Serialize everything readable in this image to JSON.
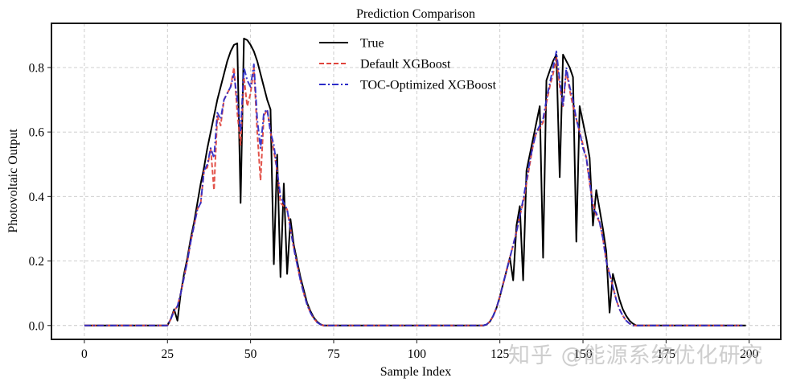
{
  "chart_data": {
    "type": "line",
    "title": "Prediction Comparison",
    "xlabel": "Sample Index",
    "ylabel": "Photovoltaic Output",
    "xlim": [
      -9.9,
      209.5
    ],
    "ylim": [
      -0.043,
      0.937
    ],
    "xticks": [
      0,
      25,
      50,
      75,
      100,
      125,
      150,
      175,
      200
    ],
    "xtick_labels": [
      "0",
      "25",
      "50",
      "75",
      "100",
      "125",
      "150",
      "175",
      "200"
    ],
    "yticks": [
      0.0,
      0.2,
      0.4,
      0.6,
      0.8
    ],
    "ytick_labels": [
      "0.0",
      "0.2",
      "0.4",
      "0.6",
      "0.8"
    ],
    "grid": true,
    "legend_position": "top-center",
    "x_start": 0,
    "series": [
      {
        "name": "True",
        "color": "#000000",
        "style": "solid",
        "values": [
          0,
          0,
          0,
          0,
          0,
          0,
          0,
          0,
          0,
          0,
          0,
          0,
          0,
          0,
          0,
          0,
          0,
          0,
          0,
          0,
          0,
          0,
          0,
          0,
          0,
          0,
          0.02,
          0.05,
          0.015,
          0.1,
          0.16,
          0.21,
          0.27,
          0.32,
          0.38,
          0.44,
          0.49,
          0.55,
          0.6,
          0.65,
          0.7,
          0.74,
          0.78,
          0.82,
          0.85,
          0.87,
          0.875,
          0.38,
          0.89,
          0.885,
          0.87,
          0.85,
          0.82,
          0.78,
          0.74,
          0.7,
          0.67,
          0.19,
          0.53,
          0.15,
          0.44,
          0.16,
          0.33,
          0.25,
          0.2,
          0.15,
          0.11,
          0.07,
          0.045,
          0.025,
          0.012,
          0.004,
          0,
          0,
          0,
          0,
          0,
          0,
          0,
          0,
          0,
          0,
          0,
          0,
          0,
          0,
          0,
          0,
          0,
          0,
          0,
          0,
          0,
          0,
          0,
          0,
          0,
          0,
          0,
          0,
          0,
          0,
          0,
          0,
          0,
          0,
          0,
          0,
          0,
          0,
          0,
          0,
          0,
          0,
          0,
          0,
          0,
          0,
          0,
          0,
          0,
          0.003,
          0.012,
          0.03,
          0.055,
          0.09,
          0.13,
          0.17,
          0.21,
          0.14,
          0.31,
          0.37,
          0.14,
          0.48,
          0.53,
          0.58,
          0.63,
          0.68,
          0.21,
          0.76,
          0.79,
          0.82,
          0.84,
          0.46,
          0.84,
          0.82,
          0.8,
          0.77,
          0.26,
          0.68,
          0.63,
          0.58,
          0.52,
          0.31,
          0.42,
          0.36,
          0.3,
          0.23,
          0.04,
          0.16,
          0.12,
          0.08,
          0.05,
          0.03,
          0.015,
          0.006,
          0,
          0,
          0,
          0,
          0,
          0,
          0,
          0,
          0,
          0,
          0,
          0,
          0,
          0,
          0,
          0,
          0,
          0,
          0,
          0,
          0,
          0,
          0,
          0,
          0,
          0,
          0,
          0,
          0,
          0,
          0,
          0,
          0,
          0
        ]
      },
      {
        "name": "Default XGBoost",
        "color": "#e0443c",
        "style": "dashed",
        "values": [
          0,
          0,
          0,
          0,
          0,
          0,
          0,
          0,
          0,
          0,
          0,
          0,
          0,
          0,
          0,
          0,
          0,
          0,
          0,
          0,
          0,
          0,
          0,
          0,
          0,
          0,
          0.02,
          0.045,
          0.06,
          0.1,
          0.15,
          0.2,
          0.26,
          0.31,
          0.36,
          0.38,
          0.48,
          0.49,
          0.55,
          0.42,
          0.65,
          0.62,
          0.7,
          0.72,
          0.74,
          0.8,
          0.66,
          0.56,
          0.77,
          0.68,
          0.72,
          0.8,
          0.6,
          0.45,
          0.65,
          0.67,
          0.6,
          0.54,
          0.48,
          0.38,
          0.37,
          0.36,
          0.3,
          0.24,
          0.19,
          0.14,
          0.1,
          0.065,
          0.04,
          0.022,
          0.01,
          0.003,
          0,
          0,
          0,
          0,
          0,
          0,
          0,
          0,
          0,
          0,
          0,
          0,
          0,
          0,
          0,
          0,
          0,
          0,
          0,
          0,
          0,
          0,
          0,
          0,
          0,
          0,
          0,
          0,
          0,
          0,
          0,
          0,
          0,
          0,
          0,
          0,
          0,
          0,
          0,
          0,
          0,
          0,
          0,
          0,
          0,
          0,
          0,
          0,
          0,
          0.003,
          0.012,
          0.03,
          0.055,
          0.09,
          0.13,
          0.17,
          0.21,
          0.25,
          0.29,
          0.34,
          0.38,
          0.44,
          0.5,
          0.56,
          0.6,
          0.61,
          0.63,
          0.69,
          0.74,
          0.78,
          0.83,
          0.74,
          0.68,
          0.79,
          0.73,
          0.68,
          0.64,
          0.6,
          0.56,
          0.52,
          0.44,
          0.38,
          0.34,
          0.32,
          0.27,
          0.2,
          0.16,
          0.12,
          0.08,
          0.05,
          0.03,
          0.015,
          0.006,
          0,
          0,
          0,
          0,
          0,
          0,
          0,
          0,
          0,
          0,
          0,
          0,
          0,
          0,
          0,
          0,
          0,
          0,
          0,
          0,
          0,
          0,
          0,
          0,
          0,
          0,
          0,
          0,
          0,
          0,
          0,
          0,
          0,
          0
        ]
      },
      {
        "name": "TOC-Optimized XGBoost",
        "color": "#2b2bc8",
        "style": "dashdot",
        "values": [
          0,
          0,
          0,
          0,
          0,
          0,
          0,
          0,
          0,
          0,
          0,
          0,
          0,
          0,
          0,
          0,
          0,
          0,
          0,
          0,
          0,
          0,
          0,
          0,
          0,
          0,
          0.02,
          0.045,
          0.06,
          0.1,
          0.15,
          0.2,
          0.26,
          0.31,
          0.36,
          0.38,
          0.48,
          0.5,
          0.55,
          0.52,
          0.66,
          0.64,
          0.7,
          0.72,
          0.74,
          0.78,
          0.7,
          0.6,
          0.8,
          0.76,
          0.74,
          0.81,
          0.64,
          0.55,
          0.66,
          0.67,
          0.6,
          0.56,
          0.48,
          0.4,
          0.38,
          0.36,
          0.3,
          0.24,
          0.19,
          0.14,
          0.1,
          0.065,
          0.04,
          0.022,
          0.01,
          0.003,
          0,
          0,
          0,
          0,
          0,
          0,
          0,
          0,
          0,
          0,
          0,
          0,
          0,
          0,
          0,
          0,
          0,
          0,
          0,
          0,
          0,
          0,
          0,
          0,
          0,
          0,
          0,
          0,
          0,
          0,
          0,
          0,
          0,
          0,
          0,
          0,
          0,
          0,
          0,
          0,
          0,
          0,
          0,
          0,
          0,
          0,
          0,
          0,
          0,
          0.003,
          0.012,
          0.03,
          0.055,
          0.09,
          0.13,
          0.17,
          0.21,
          0.25,
          0.29,
          0.34,
          0.39,
          0.45,
          0.51,
          0.56,
          0.6,
          0.62,
          0.64,
          0.7,
          0.75,
          0.8,
          0.85,
          0.76,
          0.68,
          0.8,
          0.74,
          0.7,
          0.64,
          0.6,
          0.55,
          0.52,
          0.45,
          0.36,
          0.35,
          0.32,
          0.27,
          0.2,
          0.16,
          0.12,
          0.08,
          0.05,
          0.03,
          0.015,
          0.006,
          0,
          0,
          0,
          0,
          0,
          0,
          0,
          0,
          0,
          0,
          0,
          0,
          0,
          0,
          0,
          0,
          0,
          0,
          0,
          0,
          0,
          0,
          0,
          0,
          0,
          0,
          0,
          0,
          0,
          0,
          0,
          0,
          0,
          0
        ]
      }
    ]
  },
  "watermark": "知乎 @能源系统优化研究"
}
